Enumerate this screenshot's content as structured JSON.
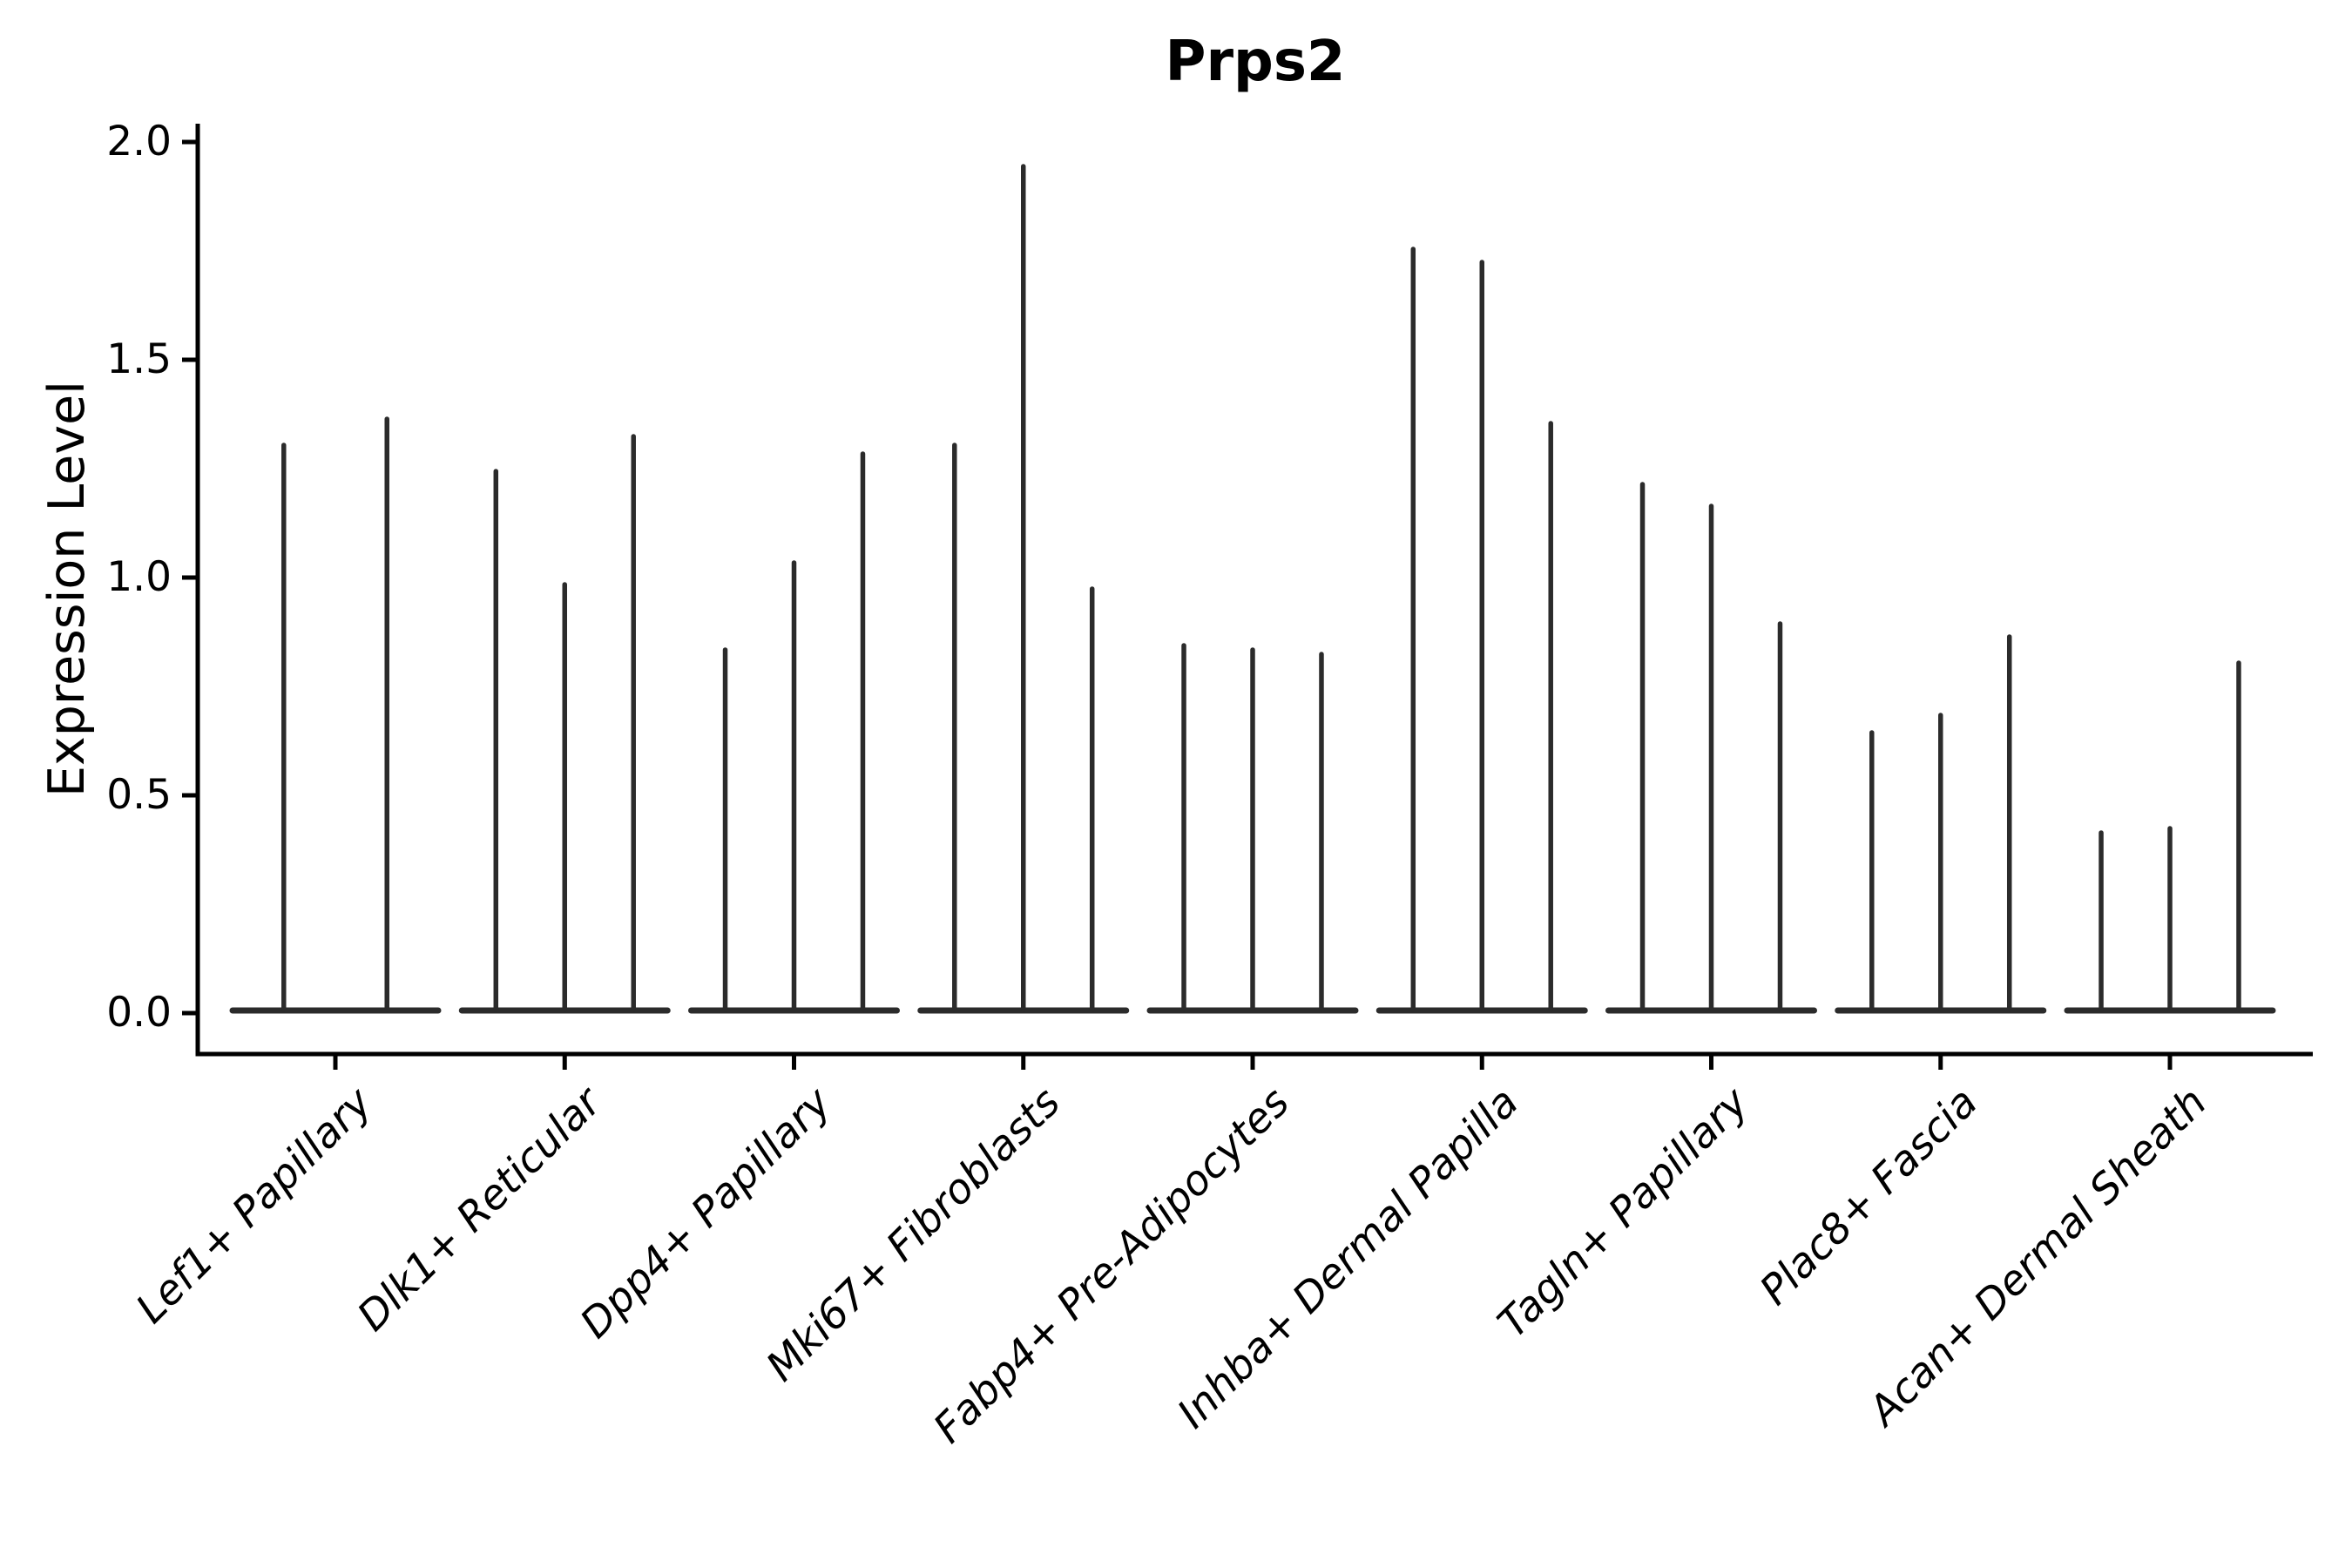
{
  "title": "Prps2",
  "y_axis_label": "Expression Level",
  "colors": {
    "violin_line": "#2b2b2b",
    "axis": "#000000",
    "text": "#000000",
    "background": "#ffffff"
  },
  "chart_data": {
    "type": "violin",
    "title": "Prps2",
    "xlabel": "",
    "ylabel": "Expression Level",
    "ylim": [
      -0.09,
      2.04
    ],
    "yticks": [
      0.0,
      0.5,
      1.0,
      1.5,
      2.0
    ],
    "ytick_labels": [
      "0.0",
      "0.5",
      "1.0",
      "1.5",
      "2.0"
    ],
    "grid": false,
    "legend_position": "none",
    "violin_group_width": 0.9,
    "baseline_value": 0.0,
    "categories": [
      "Lef1+ Papillary",
      "Dlk1+ Reticular",
      "Dpp4+ Papillary",
      "Mki67+ Fibroblasts",
      "Fabp4+ Pre-Adipocytes",
      "Inhba+ Dermal Papilla",
      "Tagln+ Papillary",
      "Plac8+ Fascia",
      "Acan+ Dermal Sheath"
    ],
    "groups": [
      {
        "category": "Lef1+ Papillary",
        "spikes": [
          {
            "offset": -0.225,
            "peak": 1.31
          },
          {
            "offset": 0.225,
            "peak": 1.37
          }
        ]
      },
      {
        "category": "Dlk1+ Reticular",
        "spikes": [
          {
            "offset": -0.3,
            "peak": 1.25
          },
          {
            "offset": 0.0,
            "peak": 0.99
          },
          {
            "offset": 0.3,
            "peak": 1.33
          }
        ]
      },
      {
        "category": "Dpp4+ Papillary",
        "spikes": [
          {
            "offset": -0.3,
            "peak": 0.84
          },
          {
            "offset": 0.0,
            "peak": 1.04
          },
          {
            "offset": 0.3,
            "peak": 1.29
          }
        ]
      },
      {
        "category": "Mki67+ Fibroblasts",
        "spikes": [
          {
            "offset": -0.3,
            "peak": 1.31
          },
          {
            "offset": 0.0,
            "peak": 1.95
          },
          {
            "offset": 0.3,
            "peak": 0.98
          }
        ]
      },
      {
        "category": "Fabp4+ Pre-Adipocytes",
        "spikes": [
          {
            "offset": -0.3,
            "peak": 0.85
          },
          {
            "offset": 0.0,
            "peak": 0.84
          },
          {
            "offset": 0.3,
            "peak": 0.83
          }
        ]
      },
      {
        "category": "Inhba+ Dermal Papilla",
        "spikes": [
          {
            "offset": -0.3,
            "peak": 1.76
          },
          {
            "offset": 0.0,
            "peak": 1.73
          },
          {
            "offset": 0.3,
            "peak": 1.36
          }
        ]
      },
      {
        "category": "Tagln+ Papillary",
        "spikes": [
          {
            "offset": -0.3,
            "peak": 1.22
          },
          {
            "offset": 0.0,
            "peak": 1.17
          },
          {
            "offset": 0.3,
            "peak": 0.9
          }
        ]
      },
      {
        "category": "Plac8+ Fascia",
        "spikes": [
          {
            "offset": -0.3,
            "peak": 0.65
          },
          {
            "offset": 0.0,
            "peak": 0.69
          },
          {
            "offset": 0.3,
            "peak": 0.87
          }
        ]
      },
      {
        "category": "Acan+ Dermal Sheath",
        "spikes": [
          {
            "offset": -0.3,
            "peak": 0.42
          },
          {
            "offset": 0.0,
            "peak": 0.43
          },
          {
            "offset": 0.3,
            "peak": 0.81
          }
        ]
      }
    ]
  }
}
